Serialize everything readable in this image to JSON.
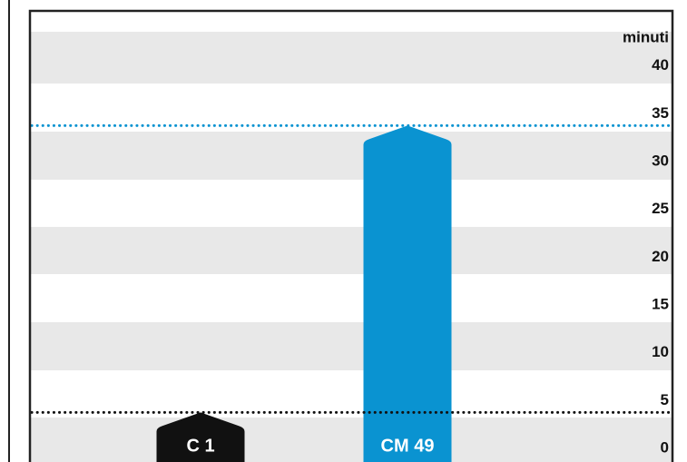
{
  "chart_data": {
    "type": "bar",
    "y_unit": "minuti",
    "categories": [
      "C 1",
      "CM 49"
    ],
    "values": [
      3,
      33
    ],
    "colors": [
      "#111111",
      "#0a93d1"
    ],
    "ylim": [
      0,
      45
    ],
    "yticks": [
      0,
      5,
      10,
      15,
      20,
      25,
      30,
      35,
      40
    ],
    "reference_lines": [
      {
        "value": 33,
        "color": "#0a93d1"
      },
      {
        "value": 3,
        "color": "#111111"
      }
    ]
  }
}
